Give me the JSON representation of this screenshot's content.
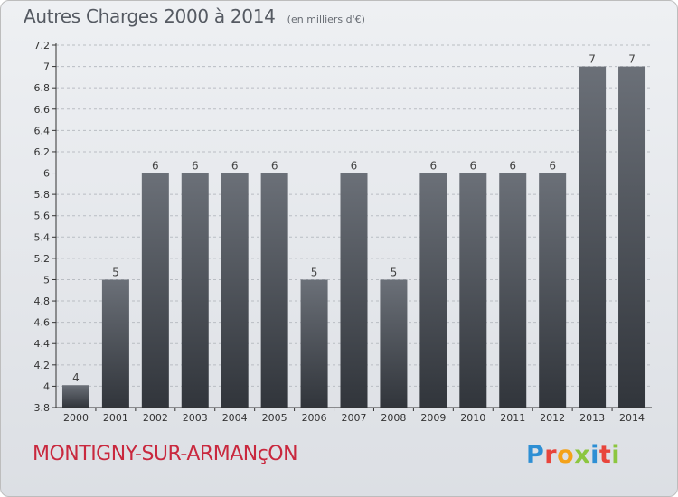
{
  "header": {
    "title": "Autres Charges 2000 à 2014",
    "subtitle": "(en milliers d'€)"
  },
  "footer": {
    "city": "MONTIGNY-SUR-ARMANçON",
    "logo_letters": [
      "P",
      "r",
      "o",
      "x",
      "i",
      "t",
      "i"
    ],
    "logo_colors": [
      "#2e8fd4",
      "#e8453c",
      "#f4a21a",
      "#8cc63f",
      "#2e8fd4",
      "#e8453c",
      "#8cc63f"
    ]
  },
  "colors": {
    "bar_top": "#6b7078",
    "bar_bottom": "#31353b",
    "axis": "#333333",
    "grid": "#b9bdc3"
  },
  "chart_data": {
    "type": "bar",
    "title": "Autres Charges 2000 à 2014",
    "xlabel": "",
    "ylabel": "",
    "categories": [
      "2000",
      "2001",
      "2002",
      "2003",
      "2004",
      "2005",
      "2006",
      "2007",
      "2008",
      "2009",
      "2010",
      "2011",
      "2012",
      "2013",
      "2014"
    ],
    "values": [
      4,
      5,
      6,
      6,
      6,
      6,
      5,
      6,
      5,
      6,
      6,
      6,
      6,
      7,
      7
    ],
    "data_labels": [
      "4",
      "5",
      "6",
      "6",
      "6",
      "6",
      "5",
      "6",
      "5",
      "6",
      "6",
      "6",
      "6",
      "7",
      "7"
    ],
    "plotted_values": [
      4.01,
      5,
      6,
      6,
      6,
      6,
      5,
      6,
      5,
      6,
      6,
      6,
      6,
      7,
      7
    ],
    "ylim": [
      3.8,
      7.2
    ],
    "yticks": [
      "3.8",
      "4",
      "4.2",
      "4.4",
      "4.6",
      "4.8",
      "5",
      "5.2",
      "5.4",
      "5.6",
      "5.8",
      "6",
      "6.2",
      "6.4",
      "6.6",
      "6.8",
      "7",
      "7.2"
    ],
    "grid": "horizontal dashed",
    "legend": "none"
  }
}
